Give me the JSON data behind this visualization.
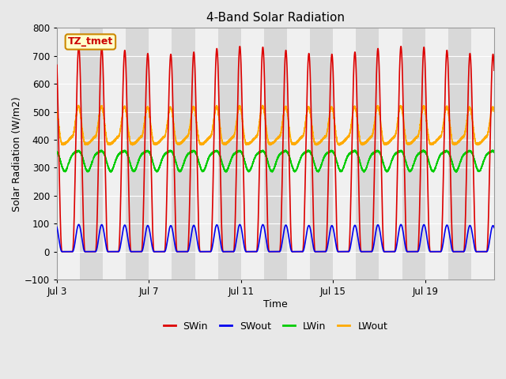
{
  "title": "4-Band Solar Radiation",
  "xlabel": "Time",
  "ylabel": "Solar Radiation (W/m2)",
  "ylim": [
    -100,
    800
  ],
  "yticks": [
    -100,
    0,
    100,
    200,
    300,
    400,
    500,
    600,
    700,
    800
  ],
  "xtick_labels": [
    "Jul 3",
    "Jul 7",
    "Jul 11",
    "Jul 15",
    "Jul 19"
  ],
  "xtick_days": [
    0,
    4,
    8,
    12,
    16
  ],
  "n_days": 19,
  "points_per_day": 288,
  "SWin_peak": 720,
  "SWout_peak": 100,
  "LWin_base": 330,
  "LWin_amplitude": 35,
  "LWout_peak": 540,
  "LWout_base": 400,
  "series_colors": {
    "SWin": "#dd0000",
    "SWout": "#0000ee",
    "LWin": "#00cc00",
    "LWout": "#ffaa00"
  },
  "series_lw": 1.2,
  "label_box": {
    "text": "TZ_tmet",
    "facecolor": "#ffffcc",
    "edgecolor": "#cc8800",
    "fontsize": 9,
    "fontweight": "bold",
    "textcolor": "#cc0000"
  },
  "legend_items": [
    "SWin",
    "SWout",
    "LWin",
    "LWout"
  ],
  "legend_colors": [
    "#dd0000",
    "#0000ee",
    "#00cc00",
    "#ffaa00"
  ],
  "fig_bg": "#e8e8e8",
  "band_light": "#f0f0f0",
  "band_dark": "#d8d8d8",
  "grid_color": "#ffffff"
}
